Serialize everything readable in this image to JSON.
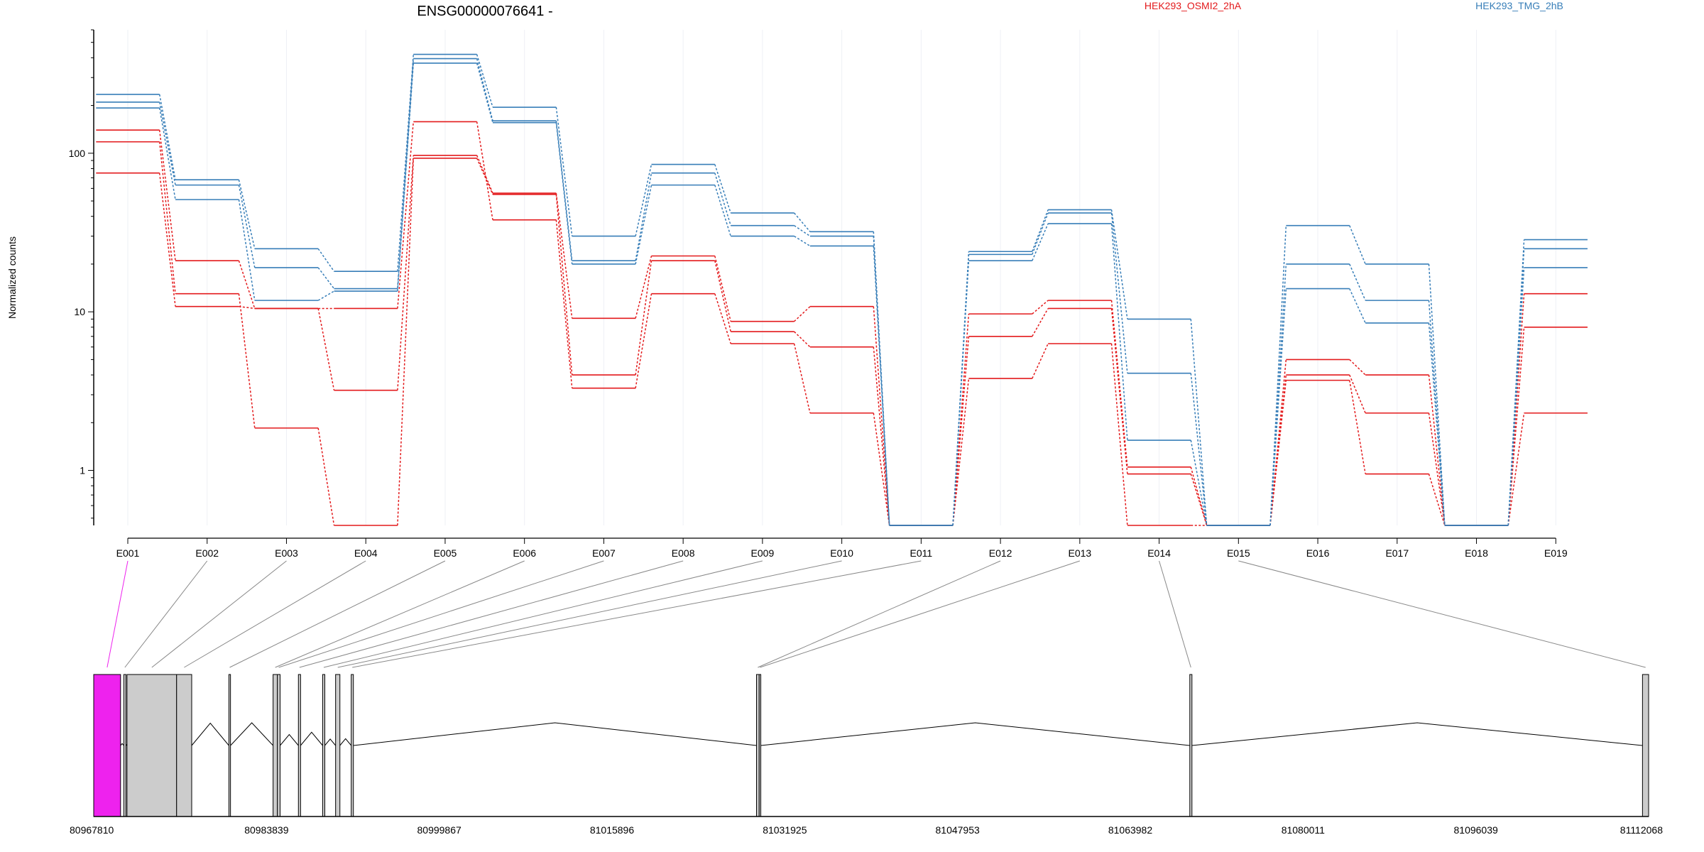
{
  "title": "ENSG00000076641 -",
  "colors": {
    "OSMI2": "#e31a1c",
    "TMG": "#377eb8",
    "highlight": "#ee22ee",
    "exon_fill": "#cccccc"
  },
  "chart_data": [
    {
      "type": "line",
      "chart": "dexseq_exon_counts",
      "ylabel": "Normalized counts",
      "y_scale": "log",
      "ylim": [
        0.45,
        600
      ],
      "yticks": [
        1,
        10,
        100
      ],
      "ytick_labels": [
        "1",
        "10",
        "100"
      ],
      "categories": [
        "E001",
        "E002",
        "E003",
        "E004",
        "E005",
        "E006",
        "E007",
        "E008",
        "E009",
        "E010",
        "E011",
        "E012",
        "E013",
        "E014",
        "E015",
        "E016",
        "E017",
        "E018",
        "E019"
      ],
      "legend": [
        {
          "name": "HEK293_OSMI2_2hA",
          "color": "#e31a1c"
        },
        {
          "name": "HEK293_TMG_2hB",
          "color": "#377eb8"
        }
      ],
      "series": [
        {
          "condition": "HEK293_OSMI2_2hA",
          "color": "#e31a1c",
          "values": [
            140,
            21,
            10.5,
            3.2,
            97,
            56,
            9.1,
            22.5,
            8.7,
            10.8,
            0.45,
            9.7,
            11.8,
            1.05,
            0.45,
            5.0,
            4.0,
            0.45,
            13.0
          ]
        },
        {
          "condition": "HEK293_OSMI2_2hA",
          "color": "#e31a1c",
          "values": [
            118,
            13,
            1.85,
            0.45,
            93,
            55,
            4.0,
            21,
            7.5,
            6.0,
            0.45,
            7.0,
            10.5,
            0.95,
            0.45,
            4.0,
            2.3,
            0.45,
            8.0
          ]
        },
        {
          "condition": "HEK293_OSMI2_2hA",
          "color": "#e31a1c",
          "values": [
            75,
            10.8,
            10.5,
            10.5,
            158,
            38,
            3.3,
            13,
            6.3,
            2.3,
            0.45,
            3.8,
            6.3,
            0.45,
            0.45,
            3.7,
            0.95,
            0.45,
            2.3
          ]
        },
        {
          "condition": "HEK293_TMG_2hB",
          "color": "#377eb8",
          "values": [
            235,
            68,
            25,
            18,
            420,
            195,
            30,
            85,
            42,
            32,
            0.45,
            24,
            44,
            9.0,
            0.45,
            35,
            20,
            0.45,
            28.5
          ]
        },
        {
          "condition": "HEK293_TMG_2hB",
          "color": "#377eb8",
          "values": [
            210,
            63,
            19,
            14,
            395,
            160,
            21,
            75,
            35,
            30,
            0.45,
            23,
            42,
            4.1,
            0.45,
            20,
            11.8,
            0.45,
            25
          ]
        },
        {
          "condition": "HEK293_TMG_2hB",
          "color": "#377eb8",
          "values": [
            193,
            51,
            11.8,
            13.5,
            370,
            156,
            20,
            63,
            30,
            26,
            0.45,
            21,
            36,
            1.55,
            0.45,
            14,
            8.5,
            0.45,
            19
          ]
        }
      ]
    },
    {
      "type": "gene_model",
      "chart": "genomic_coordinates",
      "x_range": [
        80967810,
        81112068
      ],
      "ticks": [
        80967810,
        80983839,
        80999867,
        81015896,
        81031925,
        81047953,
        81063982,
        81080011,
        81096039,
        81112068
      ],
      "tick_labels": [
        "80967810",
        "80983839",
        "80999867",
        "81015896",
        "81031925",
        "81047953",
        "81063982",
        "81080011",
        "81096039",
        "81112068"
      ],
      "highlighted_exon": "E001",
      "exons": [
        {
          "id": "E001",
          "start": 80967810,
          "end": 80970300
        },
        {
          "id": "E002",
          "start": 80970600,
          "end": 80970800
        },
        {
          "id": "E003",
          "start": 80970900,
          "end": 80975500
        },
        {
          "id": "E004",
          "start": 80975500,
          "end": 80976900
        },
        {
          "id": "E005",
          "start": 80980350,
          "end": 80980500
        },
        {
          "id": "E006",
          "start": 80984450,
          "end": 80984850
        },
        {
          "id": "E007",
          "start": 80984850,
          "end": 80985100
        },
        {
          "id": "E008",
          "start": 80986800,
          "end": 80987000
        },
        {
          "id": "E009",
          "start": 80989050,
          "end": 80989250
        },
        {
          "id": "E010",
          "start": 80990250,
          "end": 80990650
        },
        {
          "id": "E011",
          "start": 80991700,
          "end": 80991900
        },
        {
          "id": "E012",
          "start": 81029300,
          "end": 81029550
        },
        {
          "id": "E013",
          "start": 81029550,
          "end": 81029700
        },
        {
          "id": "E014",
          "start": 81069500,
          "end": 81069700
        },
        {
          "id": "E015",
          "start": 81111500,
          "end": 81112068
        }
      ]
    }
  ]
}
